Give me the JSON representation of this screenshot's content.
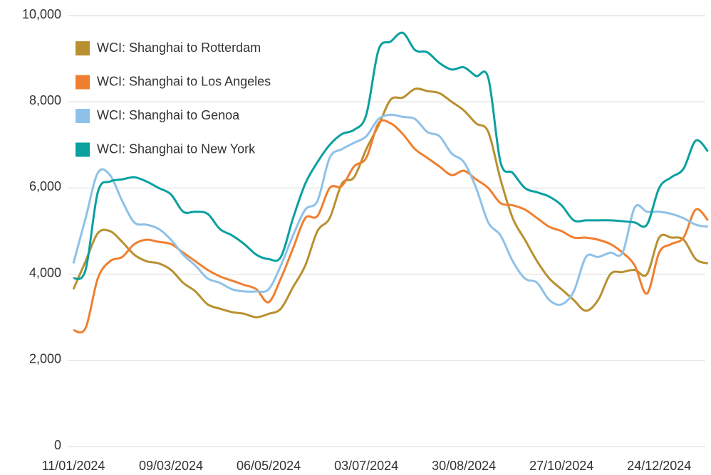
{
  "chart_data": {
    "type": "line",
    "categories": [
      "11/01/2024",
      null,
      null,
      null,
      null,
      null,
      null,
      null,
      "09/03/2024",
      null,
      null,
      null,
      null,
      null,
      null,
      null,
      "06/05/2024",
      null,
      null,
      null,
      null,
      null,
      null,
      null,
      "03/07/2024",
      null,
      null,
      null,
      null,
      null,
      null,
      null,
      "30/08/2024",
      null,
      null,
      null,
      null,
      null,
      null,
      null,
      "27/10/2024",
      null,
      null,
      null,
      null,
      null,
      null,
      null,
      "24/12/2024",
      null,
      null,
      null,
      null
    ],
    "series": [
      {
        "name": "WCI: Shanghai to Rotterdam",
        "color": "#b8902f",
        "values": [
          3650,
          4300,
          4950,
          5000,
          4750,
          4450,
          4300,
          4250,
          4100,
          3800,
          3600,
          3300,
          3200,
          3120,
          3080,
          3000,
          3080,
          3200,
          3700,
          4200,
          5000,
          5300,
          6100,
          6250,
          6900,
          7450,
          8050,
          8100,
          8300,
          8250,
          8200,
          8000,
          7800,
          7500,
          7300,
          6200,
          5300,
          4800,
          4300,
          3900,
          3650,
          3400,
          3150,
          3400,
          4000,
          4050,
          4100,
          4000,
          4850,
          4850,
          4800,
          4350,
          4250
        ]
      },
      {
        "name": "WCI: Shanghai to Los Angeles",
        "color": "#f07f2f",
        "values": [
          2700,
          2750,
          3900,
          4300,
          4400,
          4700,
          4800,
          4750,
          4700,
          4500,
          4300,
          4100,
          3950,
          3850,
          3750,
          3650,
          3350,
          3900,
          4600,
          5300,
          5350,
          6000,
          6050,
          6500,
          6700,
          7500,
          7500,
          7250,
          6900,
          6700,
          6500,
          6300,
          6400,
          6200,
          6000,
          5650,
          5600,
          5500,
          5300,
          5100,
          5000,
          4850,
          4850,
          4800,
          4700,
          4500,
          4200,
          3550,
          4500,
          4700,
          4850,
          5500,
          5250
        ]
      },
      {
        "name": "WCI: Shanghai to Genoa",
        "color": "#8ec1e8",
        "values": [
          4250,
          5300,
          6350,
          6300,
          5700,
          5200,
          5150,
          5050,
          4800,
          4450,
          4200,
          3900,
          3800,
          3650,
          3600,
          3600,
          3650,
          4200,
          4900,
          5500,
          5700,
          6700,
          6900,
          7050,
          7200,
          7600,
          7700,
          7650,
          7600,
          7300,
          7200,
          6800,
          6600,
          6000,
          5200,
          4900,
          4300,
          3900,
          3800,
          3400,
          3300,
          3600,
          4400,
          4400,
          4500,
          4500,
          5550,
          5450,
          5450,
          5400,
          5300,
          5150,
          5100
        ]
      },
      {
        "name": "WCI: Shanghai to New York",
        "color": "#0aa0a0",
        "values": [
          3900,
          4100,
          5900,
          6150,
          6200,
          6250,
          6150,
          6000,
          5850,
          5450,
          5450,
          5400,
          5050,
          4900,
          4700,
          4450,
          4350,
          4400,
          5300,
          6100,
          6600,
          7000,
          7250,
          7350,
          7700,
          9200,
          9400,
          9600,
          9200,
          9150,
          8900,
          8750,
          8800,
          8600,
          8550,
          6600,
          6350,
          6000,
          5900,
          5800,
          5600,
          5250,
          5250,
          5250,
          5250,
          5230,
          5200,
          5150,
          6000,
          6250,
          6450,
          7100,
          6850
        ]
      }
    ],
    "ylim": [
      0,
      10000
    ],
    "yticks": [
      0,
      {
        "value": 2000,
        "label": "2,000"
      },
      {
        "value": 4000,
        "label": "4,000"
      },
      {
        "value": 6000,
        "label": "6,000"
      },
      {
        "value": 8000,
        "label": "8,000"
      },
      {
        "value": 10000,
        "label": "10,000"
      }
    ],
    "grid": true,
    "legend": "upper left"
  }
}
